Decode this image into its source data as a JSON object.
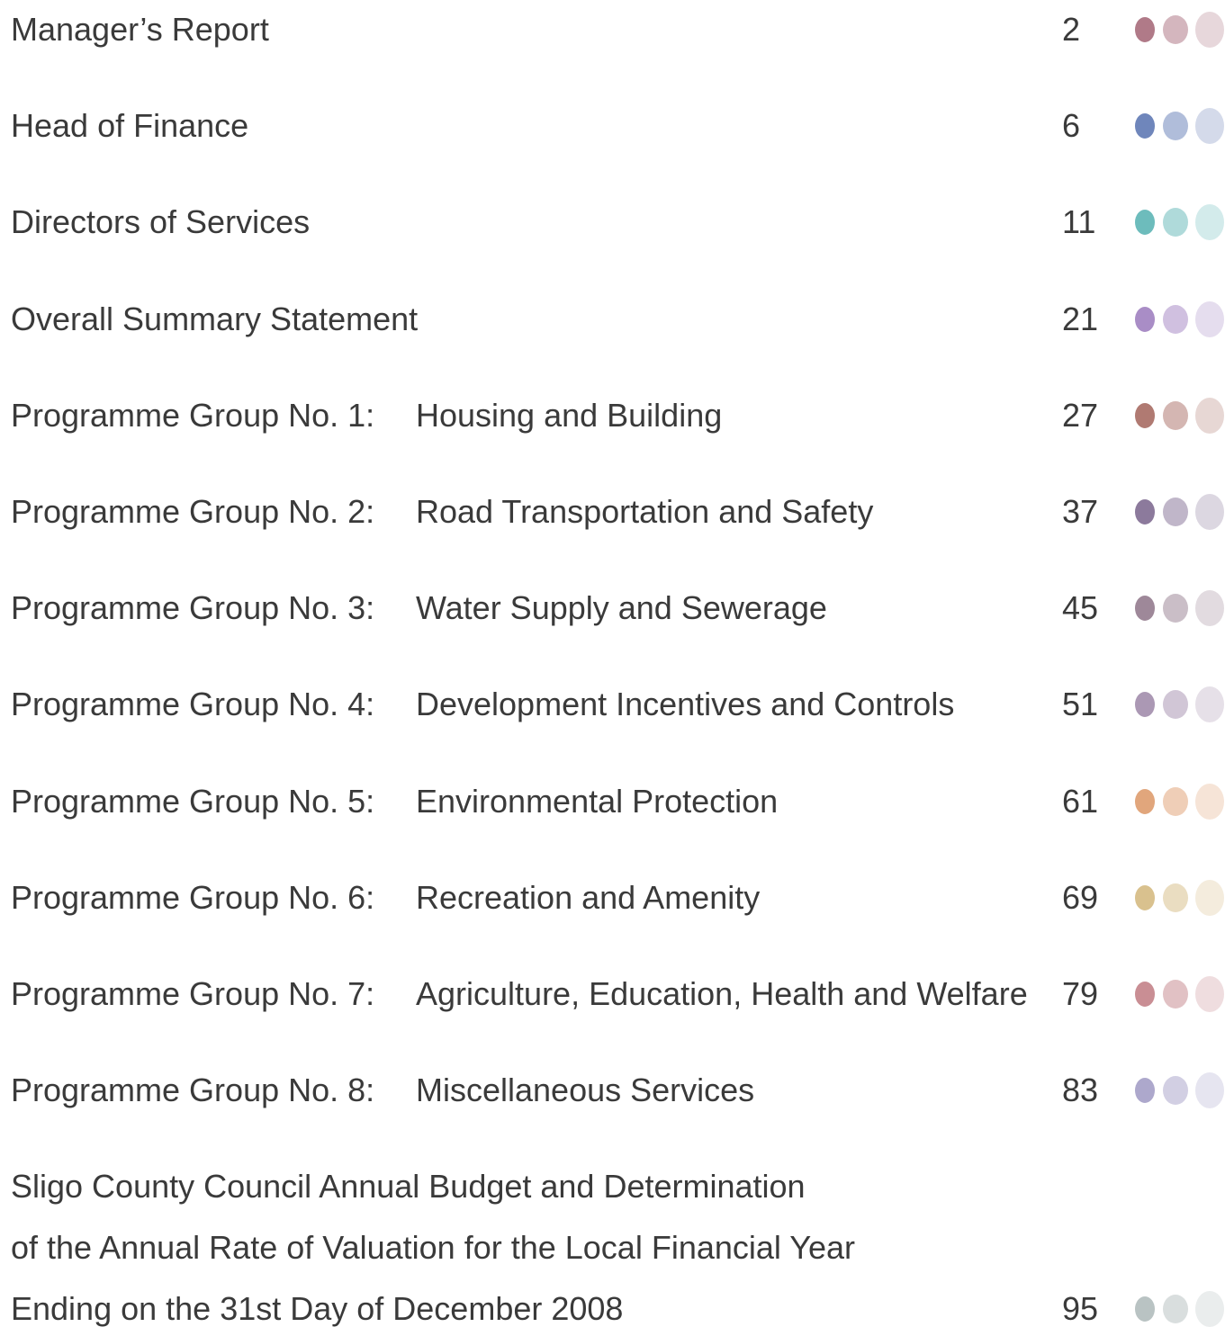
{
  "contents": [
    {
      "title": "Manager’s Report",
      "page": "2",
      "color": "#b07a88"
    },
    {
      "title": "Head of Finance",
      "page": "6",
      "color": "#6f86bb"
    },
    {
      "title": "Directors of Services",
      "page": "11",
      "color": "#6dbcbc"
    },
    {
      "title": "Overall Summary Statement",
      "page": "21",
      "color": "#a98dc6"
    },
    {
      "title": "Programme Group No. 1:",
      "subtitle": "Housing and Building",
      "page": "27",
      "color": "#b07a72"
    },
    {
      "title": "Programme Group No. 2:",
      "subtitle": "Road Transportation and Safety",
      "page": "37",
      "color": "#8c7a9c"
    },
    {
      "title": "Programme Group No. 3:",
      "subtitle": "Water Supply and Sewerage",
      "page": "45",
      "color": "#9e8899"
    },
    {
      "title": "Programme Group No. 4:",
      "subtitle": "Development Incentives and Controls",
      "page": "51",
      "color": "#ab98b4"
    },
    {
      "title": "Programme Group No. 5:",
      "subtitle": "Environmental Protection",
      "page": "61",
      "color": "#e1a67c"
    },
    {
      "title": "Programme Group No. 6:",
      "subtitle": "Recreation and Amenity",
      "page": "69",
      "color": "#d9c18e"
    },
    {
      "title": "Programme Group No. 7:",
      "subtitle": "Agriculture, Education, Health and Welfare",
      "page": "79",
      "color": "#c98e94"
    },
    {
      "title": "Programme Group No. 8:",
      "subtitle": "Miscellaneous Services",
      "page": "83",
      "color": "#ada8cc"
    },
    {
      "title_lines": [
        "Sligo County Council Annual Budget and Determination",
        "of the Annual Rate of Valuation for the Local Financial Year",
        "Ending on the 31st Day of December 2008"
      ],
      "page": "95",
      "color": "#b9c3c3"
    }
  ]
}
